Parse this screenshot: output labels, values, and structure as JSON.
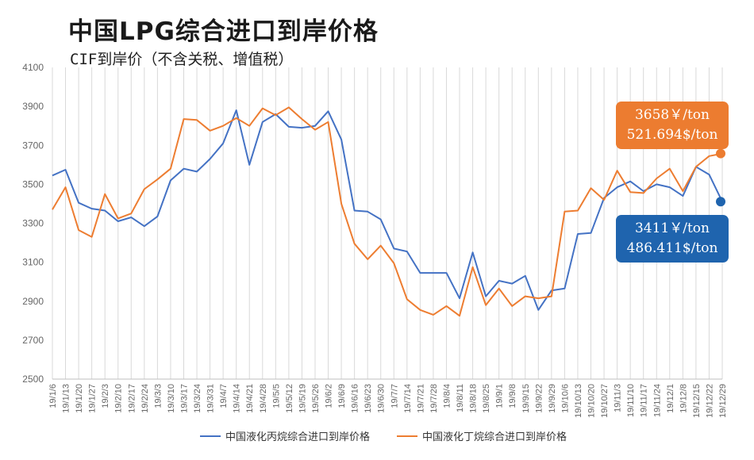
{
  "chart_data": {
    "type": "line",
    "title": "中国LPG综合进口到岸价格",
    "subtitle": "CIF到岸价（不含关税、增值税）",
    "xlabel": "",
    "ylabel": "",
    "ylim": [
      2500,
      4100
    ],
    "yticks": [
      "2500",
      "2700",
      "2900",
      "3100",
      "3300",
      "3500",
      "3700",
      "3900",
      "4100"
    ],
    "grid": "vertical",
    "legend_position": "bottom",
    "categories": [
      "19/1/6",
      "19/1/13",
      "19/1/20",
      "19/1/27",
      "19/2/3",
      "19/2/10",
      "19/2/17",
      "19/2/24",
      "19/3/3",
      "19/3/10",
      "19/3/17",
      "19/3/24",
      "19/3/31",
      "19/4/7",
      "19/4/14",
      "19/4/21",
      "19/4/28",
      "19/5/5",
      "19/5/12",
      "19/5/19",
      "19/5/26",
      "19/6/2",
      "19/6/9",
      "19/6/16",
      "19/6/23",
      "19/6/30",
      "19/7/7",
      "19/7/14",
      "19/7/21",
      "19/7/28",
      "19/8/4",
      "19/8/11",
      "19/8/18",
      "19/8/25",
      "19/9/1",
      "19/9/8",
      "19/9/15",
      "19/9/22",
      "19/9/29",
      "19/10/6",
      "19/10/13",
      "19/10/20",
      "19/10/27",
      "19/11/3",
      "19/11/10",
      "19/11/17",
      "19/11/24",
      "19/12/1",
      "19/12/8",
      "19/12/15",
      "19/12/22",
      "19/12/29"
    ],
    "series": [
      {
        "name": "中国液化丙烷综合进口到岸价格",
        "color": "#4472c4",
        "values": [
          3545,
          3575,
          3405,
          3375,
          3365,
          3310,
          3330,
          3285,
          3335,
          3520,
          3580,
          3565,
          3630,
          3710,
          3880,
          3600,
          3820,
          3860,
          3795,
          3790,
          3800,
          3875,
          3730,
          3365,
          3360,
          3320,
          3170,
          3155,
          3045,
          3045,
          3045,
          2915,
          3150,
          2925,
          3005,
          2990,
          3030,
          2855,
          2955,
          2965,
          3245,
          3250,
          3430,
          3485,
          3515,
          3465,
          3500,
          3485,
          3440,
          3590,
          3550,
          3411
        ]
      },
      {
        "name": "中国液化丁烷综合进口到岸价格",
        "color": "#ed7d31",
        "values": [
          3370,
          3485,
          3265,
          3230,
          3450,
          3325,
          3350,
          3475,
          3525,
          3580,
          3835,
          3830,
          3775,
          3800,
          3840,
          3800,
          3890,
          3855,
          3895,
          3835,
          3780,
          3820,
          3400,
          3195,
          3115,
          3185,
          3095,
          2910,
          2855,
          2830,
          2875,
          2825,
          3075,
          2880,
          2965,
          2875,
          2925,
          2915,
          2925,
          3360,
          3365,
          3480,
          3420,
          3570,
          3460,
          3455,
          3530,
          3580,
          3465,
          3590,
          3645,
          3658
        ]
      }
    ],
    "end_markers": [
      {
        "series": "中国液化丁烷综合进口到岸价格",
        "color": "#ec7c30",
        "value": 3658
      },
      {
        "series": "中国液化丙烷综合进口到岸价格",
        "color": "#1f64ae",
        "value": 3411
      }
    ],
    "callouts": {
      "butane": {
        "line1": "3658￥/ton",
        "line2": "521.694$/ton",
        "color": "#ec7c30"
      },
      "propane": {
        "line1": "3411￥/ton",
        "line2": "486.411$/ton",
        "color": "#1f64ae"
      }
    }
  }
}
